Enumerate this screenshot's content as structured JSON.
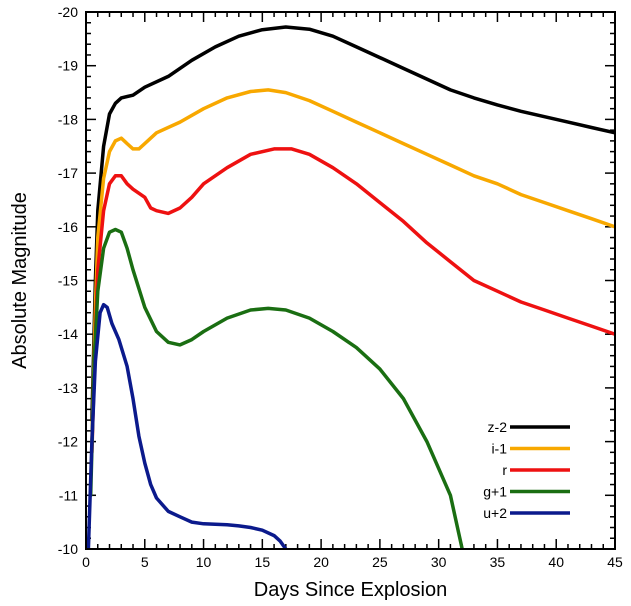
{
  "chart_data": {
    "type": "line",
    "title": "",
    "xlabel": "Days Since Explosion",
    "ylabel": "Absolute Magnitude",
    "xlim": [
      0,
      45
    ],
    "ylim": [
      -10,
      -20
    ],
    "y_inverted": true,
    "x_ticks": [
      0,
      5,
      10,
      15,
      20,
      25,
      30,
      35,
      40,
      45
    ],
    "y_ticks": [
      -10,
      -11,
      -12,
      -13,
      -14,
      -15,
      -16,
      -17,
      -18,
      -19,
      -20
    ],
    "grid": false,
    "legend_position": "bottom-right",
    "series": [
      {
        "name": "z-2",
        "color": "#000000",
        "points": [
          [
            0.5,
            -12.4
          ],
          [
            0.8,
            -15.0
          ],
          [
            1.0,
            -16.3
          ],
          [
            1.5,
            -17.5
          ],
          [
            2.0,
            -18.1
          ],
          [
            2.5,
            -18.3
          ],
          [
            3.0,
            -18.4
          ],
          [
            4.0,
            -18.45
          ],
          [
            5.0,
            -18.6
          ],
          [
            7.0,
            -18.8
          ],
          [
            9.0,
            -19.1
          ],
          [
            11.0,
            -19.35
          ],
          [
            13.0,
            -19.55
          ],
          [
            15.0,
            -19.67
          ],
          [
            17.0,
            -19.72
          ],
          [
            19.0,
            -19.68
          ],
          [
            21.0,
            -19.55
          ],
          [
            23.0,
            -19.35
          ],
          [
            25.0,
            -19.15
          ],
          [
            27.0,
            -18.95
          ],
          [
            29.0,
            -18.75
          ],
          [
            31.0,
            -18.55
          ],
          [
            33.0,
            -18.4
          ],
          [
            35.0,
            -18.27
          ],
          [
            37.0,
            -18.15
          ],
          [
            39.0,
            -18.05
          ],
          [
            41.0,
            -17.95
          ],
          [
            43.0,
            -17.85
          ],
          [
            45.0,
            -17.75
          ]
        ]
      },
      {
        "name": "i-1",
        "color": "#f8a800",
        "points": [
          [
            0.5,
            -12.0
          ],
          [
            0.8,
            -14.5
          ],
          [
            1.0,
            -15.8
          ],
          [
            1.5,
            -16.9
          ],
          [
            2.0,
            -17.4
          ],
          [
            2.5,
            -17.6
          ],
          [
            3.0,
            -17.65
          ],
          [
            3.5,
            -17.55
          ],
          [
            4.0,
            -17.45
          ],
          [
            4.5,
            -17.45
          ],
          [
            5.0,
            -17.55
          ],
          [
            6.0,
            -17.75
          ],
          [
            8.0,
            -17.95
          ],
          [
            10.0,
            -18.2
          ],
          [
            12.0,
            -18.4
          ],
          [
            14.0,
            -18.52
          ],
          [
            15.5,
            -18.55
          ],
          [
            17.0,
            -18.5
          ],
          [
            19.0,
            -18.35
          ],
          [
            21.0,
            -18.15
          ],
          [
            23.0,
            -17.95
          ],
          [
            25.0,
            -17.75
          ],
          [
            27.0,
            -17.55
          ],
          [
            29.0,
            -17.35
          ],
          [
            31.0,
            -17.15
          ],
          [
            33.0,
            -16.95
          ],
          [
            35.0,
            -16.8
          ],
          [
            37.0,
            -16.6
          ],
          [
            39.0,
            -16.45
          ],
          [
            41.0,
            -16.3
          ],
          [
            43.0,
            -16.15
          ],
          [
            45.0,
            -16.0
          ]
        ]
      },
      {
        "name": "r",
        "color": "#ee1111",
        "points": [
          [
            0.5,
            -11.8
          ],
          [
            0.8,
            -14.0
          ],
          [
            1.0,
            -15.2
          ],
          [
            1.5,
            -16.3
          ],
          [
            2.0,
            -16.8
          ],
          [
            2.5,
            -16.95
          ],
          [
            3.0,
            -16.95
          ],
          [
            3.5,
            -16.8
          ],
          [
            4.0,
            -16.7
          ],
          [
            5.0,
            -16.55
          ],
          [
            5.5,
            -16.35
          ],
          [
            6.0,
            -16.3
          ],
          [
            7.0,
            -16.25
          ],
          [
            8.0,
            -16.35
          ],
          [
            9.0,
            -16.55
          ],
          [
            10.0,
            -16.8
          ],
          [
            12.0,
            -17.1
          ],
          [
            14.0,
            -17.35
          ],
          [
            16.0,
            -17.45
          ],
          [
            17.5,
            -17.45
          ],
          [
            19.0,
            -17.35
          ],
          [
            21.0,
            -17.1
          ],
          [
            23.0,
            -16.8
          ],
          [
            25.0,
            -16.45
          ],
          [
            27.0,
            -16.1
          ],
          [
            29.0,
            -15.7
          ],
          [
            31.0,
            -15.35
          ],
          [
            33.0,
            -15.0
          ],
          [
            35.0,
            -14.8
          ],
          [
            37.0,
            -14.6
          ],
          [
            39.0,
            -14.45
          ],
          [
            41.0,
            -14.3
          ],
          [
            43.0,
            -14.15
          ],
          [
            45.0,
            -14.0
          ]
        ]
      },
      {
        "name": "g+1",
        "color": "#1a6e12",
        "points": [
          [
            0.4,
            -11.0
          ],
          [
            0.7,
            -13.5
          ],
          [
            1.0,
            -14.8
          ],
          [
            1.5,
            -15.6
          ],
          [
            2.0,
            -15.9
          ],
          [
            2.5,
            -15.95
          ],
          [
            3.0,
            -15.9
          ],
          [
            3.5,
            -15.6
          ],
          [
            4.0,
            -15.2
          ],
          [
            5.0,
            -14.5
          ],
          [
            6.0,
            -14.05
          ],
          [
            7.0,
            -13.85
          ],
          [
            8.0,
            -13.8
          ],
          [
            9.0,
            -13.9
          ],
          [
            10.0,
            -14.05
          ],
          [
            12.0,
            -14.3
          ],
          [
            14.0,
            -14.45
          ],
          [
            15.5,
            -14.48
          ],
          [
            17.0,
            -14.45
          ],
          [
            19.0,
            -14.3
          ],
          [
            21.0,
            -14.05
          ],
          [
            23.0,
            -13.75
          ],
          [
            25.0,
            -13.35
          ],
          [
            27.0,
            -12.8
          ],
          [
            29.0,
            -12.0
          ],
          [
            31.0,
            -11.0
          ],
          [
            32.0,
            -10.0
          ]
        ]
      },
      {
        "name": "u+2",
        "color": "#0b1a8c",
        "points": [
          [
            0.2,
            -10.0
          ],
          [
            0.5,
            -12.0
          ],
          [
            0.8,
            -13.5
          ],
          [
            1.2,
            -14.4
          ],
          [
            1.5,
            -14.55
          ],
          [
            1.8,
            -14.5
          ],
          [
            2.2,
            -14.2
          ],
          [
            2.8,
            -13.9
          ],
          [
            3.5,
            -13.4
          ],
          [
            4.0,
            -12.8
          ],
          [
            4.5,
            -12.1
          ],
          [
            5.0,
            -11.6
          ],
          [
            5.5,
            -11.2
          ],
          [
            6.0,
            -10.95
          ],
          [
            7.0,
            -10.7
          ],
          [
            8.0,
            -10.6
          ],
          [
            9.0,
            -10.5
          ],
          [
            10.0,
            -10.47
          ],
          [
            11.0,
            -10.46
          ],
          [
            12.0,
            -10.45
          ],
          [
            13.0,
            -10.43
          ],
          [
            14.0,
            -10.4
          ],
          [
            15.0,
            -10.35
          ],
          [
            16.0,
            -10.25
          ],
          [
            16.5,
            -10.15
          ],
          [
            17.0,
            -10.0
          ]
        ]
      }
    ]
  }
}
